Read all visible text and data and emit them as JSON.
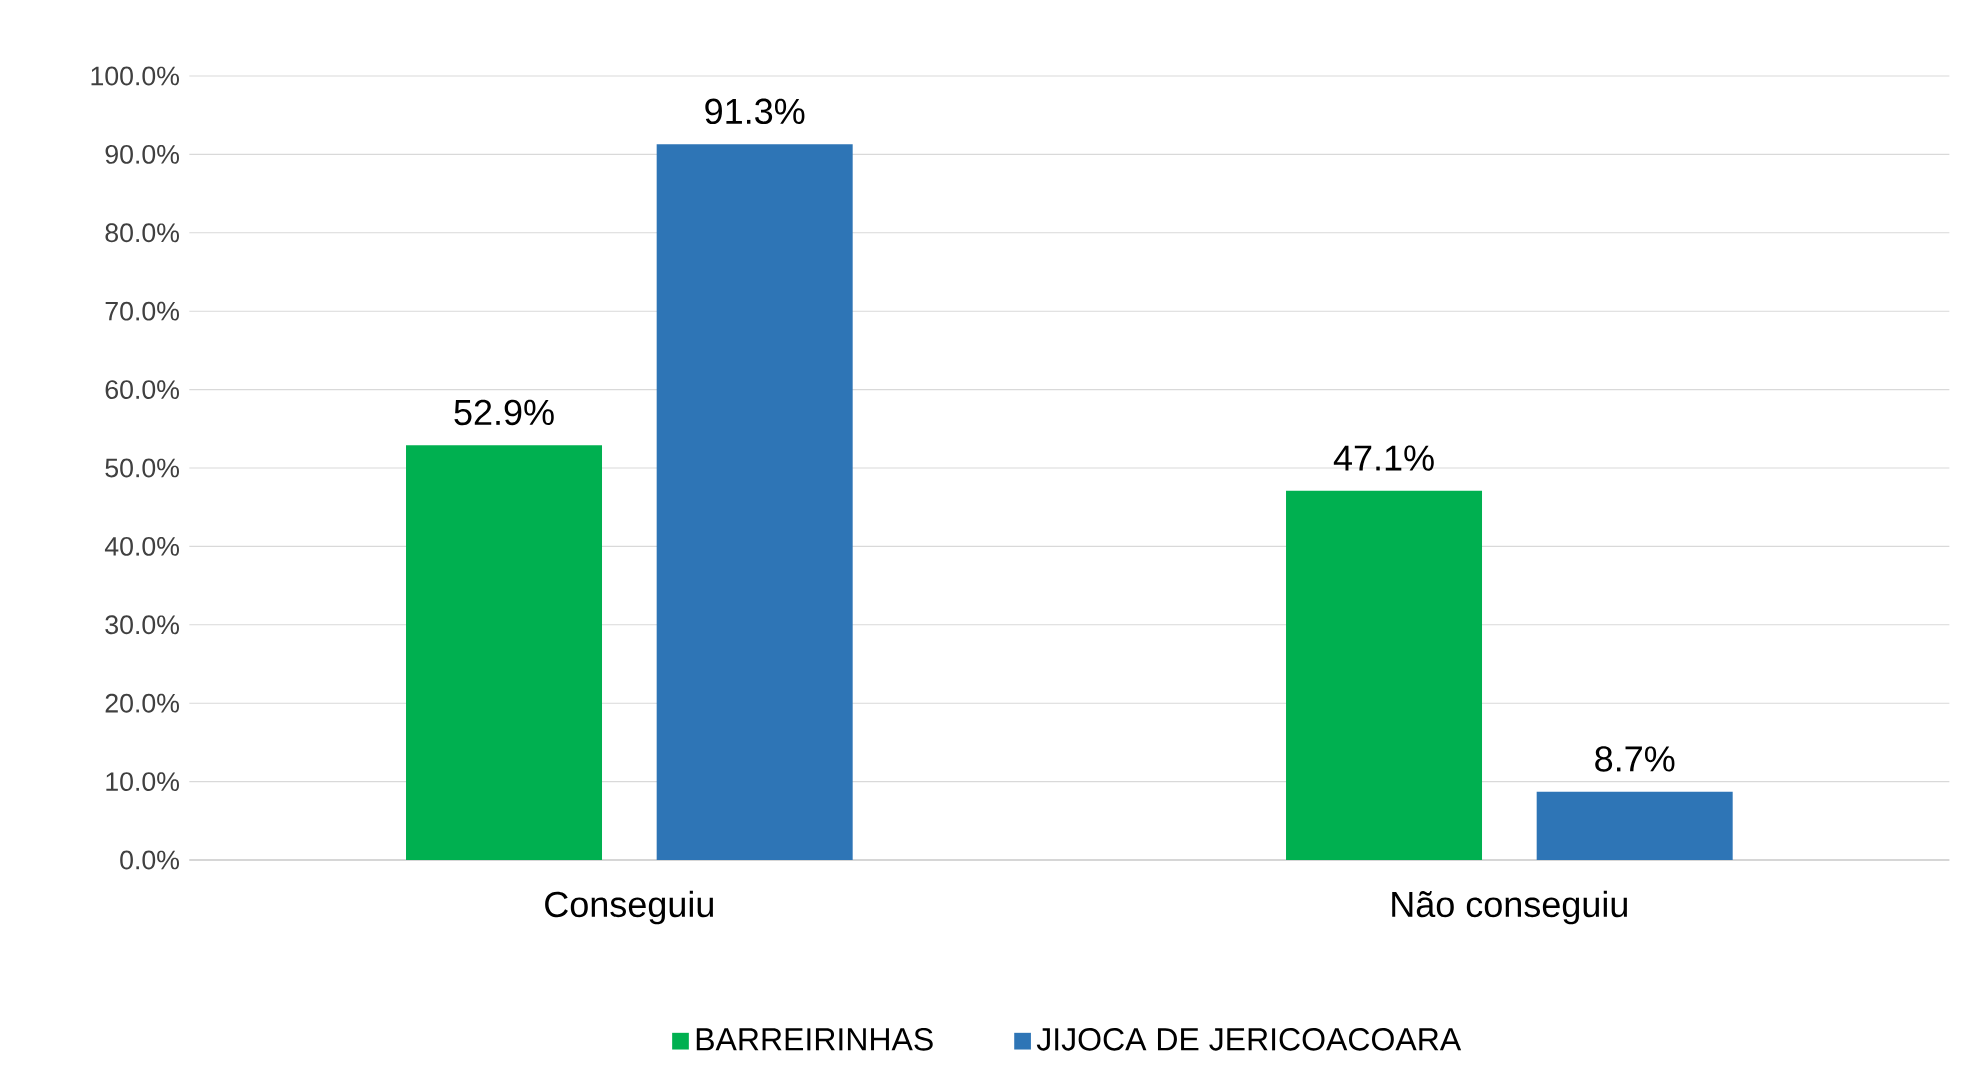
{
  "chart_data": {
    "type": "bar",
    "categories": [
      "Conseguiu",
      "Não conseguiu"
    ],
    "series": [
      {
        "name": "BARREIRINHAS",
        "color": "#00b050",
        "values": [
          52.9,
          47.1
        ],
        "value_labels": [
          "52.9%",
          "47.1%"
        ]
      },
      {
        "name": "JIJOCA DE JERICOACOARA",
        "color": "#2e75b6",
        "values": [
          91.3,
          8.7
        ],
        "value_labels": [
          "91.3%",
          "8.7%"
        ]
      }
    ],
    "ylim": [
      0,
      100
    ],
    "yticks": [
      {
        "value": 0,
        "label": "0.0%"
      },
      {
        "value": 10,
        "label": "10.0%"
      },
      {
        "value": 20,
        "label": "20.0%"
      },
      {
        "value": 30,
        "label": "30.0%"
      },
      {
        "value": 40,
        "label": "40.0%"
      },
      {
        "value": 50,
        "label": "50.0%"
      },
      {
        "value": 60,
        "label": "60.0%"
      },
      {
        "value": 70,
        "label": "70.0%"
      },
      {
        "value": 80,
        "label": "80.0%"
      },
      {
        "value": 90,
        "label": "90.0%"
      },
      {
        "value": 100,
        "label": "100.0%"
      }
    ],
    "grid": "y",
    "legend": "bottom"
  }
}
